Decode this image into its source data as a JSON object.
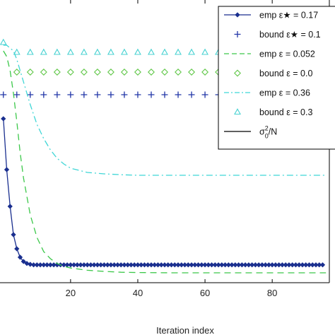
{
  "chart_data": {
    "type": "line",
    "title": "",
    "xlabel": "Iteration index",
    "ylabel": "",
    "xlim": [
      -1,
      97
    ],
    "ylim": [
      0,
      1
    ],
    "x_ticks": [
      20,
      40,
      60,
      80
    ],
    "x_tick_labels": [
      "20",
      "40",
      "60",
      "80"
    ],
    "grid": false,
    "legend_position": "top-right",
    "colors": {
      "emp_star": "#1a2f8f",
      "bound_star": "#2236a8",
      "emp_green": "#3cc84a",
      "bound_green": "#62c84a",
      "emp_cyan": "#3fd6d6",
      "bound_cyan": "#48d2d2",
      "reference": "#000000"
    },
    "series": [
      {
        "name": "emp ε★ = 0.17",
        "color_key": "emp_star",
        "style": "solid-diamond",
        "x": [
          0,
          1,
          2,
          3,
          4,
          5,
          6,
          7,
          8,
          9,
          10,
          12,
          14,
          16,
          18,
          20,
          25,
          30,
          35,
          40,
          45,
          50,
          55,
          60,
          65,
          70,
          75,
          80,
          85,
          90,
          95
        ],
        "y": [
          0.58,
          0.4,
          0.27,
          0.17,
          0.12,
          0.09,
          0.075,
          0.068,
          0.065,
          0.063,
          0.063,
          0.063,
          0.063,
          0.063,
          0.063,
          0.063,
          0.063,
          0.063,
          0.063,
          0.063,
          0.063,
          0.063,
          0.063,
          0.063,
          0.063,
          0.063,
          0.063,
          0.063,
          0.063,
          0.063,
          0.063
        ]
      },
      {
        "name": "bound ε★ = 0.1",
        "color_key": "bound_star",
        "style": "plus",
        "x": [
          0,
          4,
          8,
          12,
          16,
          20,
          24,
          28,
          32,
          36,
          40,
          44,
          48,
          52,
          56,
          60,
          64,
          68,
          72,
          76,
          80,
          84,
          88,
          92,
          96
        ],
        "y": [
          0.665,
          0.665,
          0.665,
          0.665,
          0.665,
          0.665,
          0.665,
          0.665,
          0.665,
          0.665,
          0.665,
          0.665,
          0.665,
          0.665,
          0.665,
          0.665,
          0.665,
          0.665,
          0.665,
          0.665,
          0.665,
          0.665,
          0.665,
          0.665,
          0.665
        ]
      },
      {
        "name": "emp ε = 0.052",
        "color_key": "emp_green",
        "style": "dashed",
        "x": [
          0,
          1,
          2,
          3,
          4,
          5,
          6,
          8,
          10,
          12,
          14,
          16,
          18,
          20,
          25,
          30,
          35,
          40,
          50,
          60,
          70,
          80,
          90,
          96
        ],
        "y": [
          0.82,
          0.8,
          0.75,
          0.67,
          0.57,
          0.46,
          0.37,
          0.24,
          0.16,
          0.11,
          0.085,
          0.068,
          0.058,
          0.052,
          0.044,
          0.04,
          0.037,
          0.036,
          0.035,
          0.035,
          0.035,
          0.035,
          0.035,
          0.035
        ]
      },
      {
        "name": "bound ε = 0.0",
        "color_key": "bound_green",
        "style": "diamond-open",
        "x": [
          4,
          8,
          12,
          16,
          20,
          24,
          28,
          32,
          36,
          40,
          44,
          48,
          52,
          56,
          60,
          64,
          68,
          72,
          76,
          80,
          84,
          88,
          92,
          96
        ],
        "y": [
          0.745,
          0.745,
          0.745,
          0.745,
          0.745,
          0.745,
          0.745,
          0.745,
          0.745,
          0.745,
          0.745,
          0.745,
          0.745,
          0.745,
          0.745,
          0.745,
          0.745,
          0.745,
          0.745,
          0.745,
          0.745,
          0.745,
          0.745,
          0.745
        ]
      },
      {
        "name": "emp ε = 0.36",
        "color_key": "emp_cyan",
        "style": "dashdot",
        "x": [
          0,
          1,
          2,
          3,
          4,
          5,
          6,
          8,
          10,
          12,
          14,
          16,
          18,
          20,
          25,
          30,
          35,
          40,
          50,
          60,
          70,
          80,
          90,
          96
        ],
        "y": [
          0.84,
          0.84,
          0.83,
          0.82,
          0.79,
          0.75,
          0.71,
          0.63,
          0.56,
          0.51,
          0.47,
          0.44,
          0.42,
          0.405,
          0.39,
          0.385,
          0.382,
          0.38,
          0.38,
          0.38,
          0.38,
          0.38,
          0.38,
          0.38
        ]
      },
      {
        "name": "bound ε = 0.3",
        "color_key": "bound_cyan",
        "style": "triangle-open",
        "x": [
          0,
          4,
          8,
          12,
          16,
          20,
          24,
          28,
          32,
          36,
          40,
          44,
          48,
          52,
          56,
          60,
          64,
          68,
          72,
          76,
          80,
          84,
          88,
          92,
          96
        ],
        "y": [
          0.85,
          0.815,
          0.815,
          0.815,
          0.815,
          0.815,
          0.815,
          0.815,
          0.815,
          0.815,
          0.815,
          0.815,
          0.815,
          0.815,
          0.815,
          0.815,
          0.815,
          0.815,
          0.815,
          0.815,
          0.815,
          0.815,
          0.815,
          0.815,
          0.815
        ]
      },
      {
        "name_prefix": "σ",
        "name_sup": "2",
        "name_sub": "0",
        "name_suffix": "/N",
        "color_key": "reference",
        "style": "solid",
        "x": [],
        "y": []
      }
    ]
  }
}
